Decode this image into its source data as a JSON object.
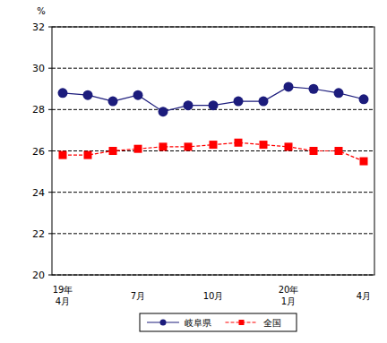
{
  "chart_data": {
    "type": "line",
    "y_label": "%",
    "categories": [
      "19年\n4月",
      null,
      null,
      "7月",
      null,
      null,
      "10月",
      null,
      null,
      "20年\n1月",
      null,
      null,
      "4月"
    ],
    "series": [
      {
        "name": "岐阜県",
        "color": "#1c1c7c",
        "marker": "circle",
        "line_style": "solid",
        "values": [
          28.8,
          28.7,
          28.4,
          28.7,
          27.9,
          28.2,
          28.2,
          28.4,
          28.4,
          29.1,
          29.0,
          28.8,
          28.5
        ]
      },
      {
        "name": "全国",
        "color": "#ff0000",
        "marker": "square",
        "line_style": "dashed",
        "values": [
          25.8,
          25.8,
          26.0,
          26.1,
          26.2,
          26.2,
          26.3,
          26.4,
          26.3,
          26.2,
          26.0,
          26.0,
          25.5
        ]
      }
    ],
    "ylim": [
      20,
      32
    ],
    "yticks": [
      20,
      22,
      24,
      26,
      28,
      30,
      32
    ],
    "grid": true,
    "legend": "bottom"
  }
}
